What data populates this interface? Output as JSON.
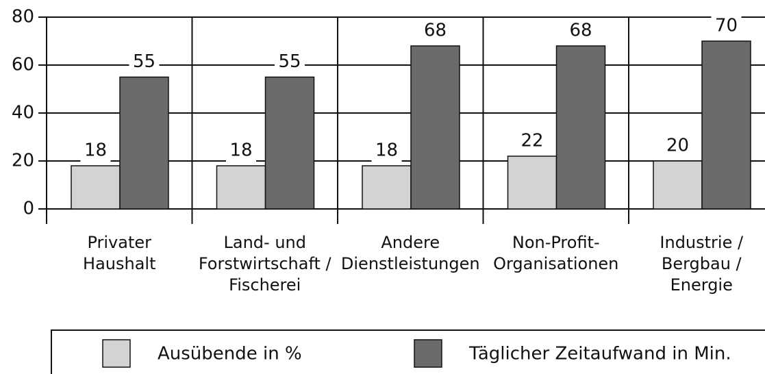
{
  "chart_data": {
    "type": "bar",
    "categories": [
      "Privater\nHaushalt",
      "Land- und\nForstwirtschaft /\nFischerei",
      "Andere\nDienstleistungen",
      "Non-Profit-\nOrganisationen",
      "Industrie /\nBergbau /\nEnergie"
    ],
    "series": [
      {
        "name": "Ausübende in %",
        "color": "#d3d3d3",
        "values": [
          18,
          18,
          18,
          22,
          20
        ]
      },
      {
        "name": "Täglicher Zeitaufwand in Min.",
        "color": "#6b6b6b",
        "values": [
          55,
          55,
          68,
          68,
          70
        ]
      }
    ],
    "ylim": [
      0,
      80
    ],
    "yticks": [
      0,
      20,
      40,
      60,
      80
    ],
    "grid": true
  }
}
